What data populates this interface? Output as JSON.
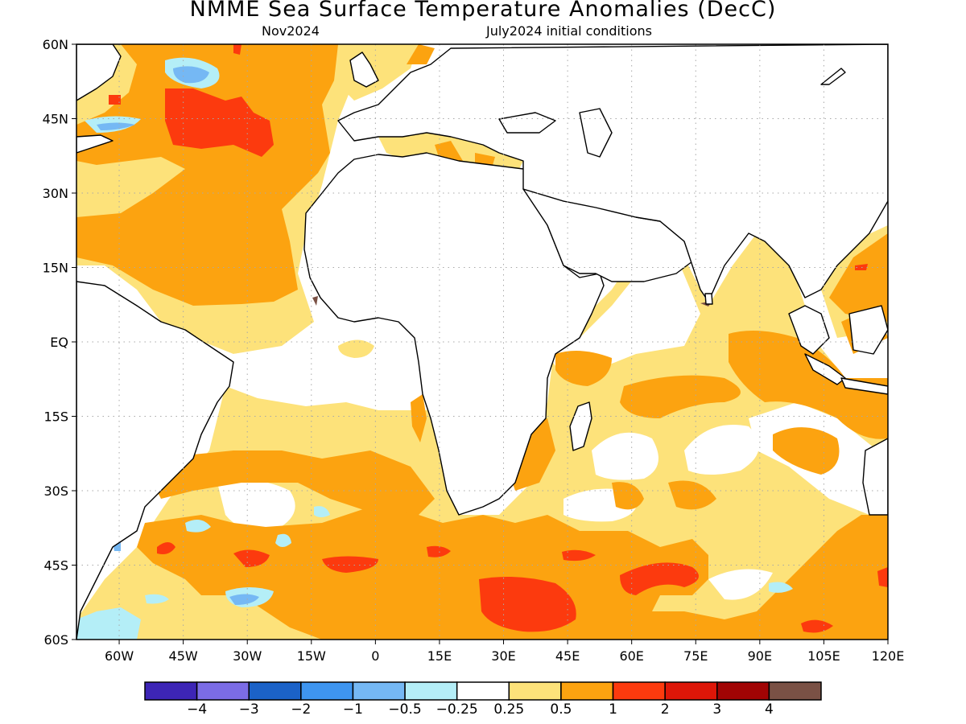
{
  "title": "NMME Sea Surface Temperature Anomalies (DecC)",
  "subtitle_left": "Nov2024",
  "subtitle_right": "July2024 initial conditions",
  "map": {
    "projection": "equirectangular",
    "lon_range": [
      -70,
      120
    ],
    "lat_range": [
      -60,
      60
    ],
    "grid": "dotted",
    "lat_ticks": [
      {
        "lat": 60,
        "label": "60N"
      },
      {
        "lat": 45,
        "label": "45N"
      },
      {
        "lat": 30,
        "label": "30N"
      },
      {
        "lat": 15,
        "label": "15N"
      },
      {
        "lat": 0,
        "label": "EQ"
      },
      {
        "lat": -15,
        "label": "15S"
      },
      {
        "lat": -30,
        "label": "30S"
      },
      {
        "lat": -45,
        "label": "45S"
      },
      {
        "lat": -60,
        "label": "60S"
      }
    ],
    "lon_ticks": [
      {
        "lon": -60,
        "label": "60W"
      },
      {
        "lon": -45,
        "label": "45W"
      },
      {
        "lon": -30,
        "label": "30W"
      },
      {
        "lon": -15,
        "label": "15W"
      },
      {
        "lon": 0,
        "label": "0"
      },
      {
        "lon": 15,
        "label": "15E"
      },
      {
        "lon": 30,
        "label": "30E"
      },
      {
        "lon": 45,
        "label": "45E"
      },
      {
        "lon": 60,
        "label": "60E"
      },
      {
        "lon": 75,
        "label": "75E"
      },
      {
        "lon": 90,
        "label": "90E"
      },
      {
        "lon": 105,
        "label": "105E"
      },
      {
        "lon": 120,
        "label": "120E"
      }
    ]
  },
  "colorbar": {
    "colors": [
      "#3d25b6",
      "#7b6ce6",
      "#1b62c8",
      "#3e95f0",
      "#75b8f4",
      "#b4eef7",
      "#ffffff",
      "#fde27a",
      "#fca310",
      "#fc3a0e",
      "#de1608",
      "#a10404",
      "#7a5145"
    ],
    "labels": [
      "−4",
      "−3",
      "−2",
      "−1",
      "−0.5",
      "−0.25",
      "0.25",
      "0.5",
      "1",
      "2",
      "3",
      "4"
    ]
  },
  "colors": {
    "land": "#ffffff",
    "coast": "#000000",
    "grid": "#a8a8a8",
    "weak_warm": "#fde27a",
    "warm": "#fca310",
    "strong_warm": "#fc3a0e",
    "weak_cool": "#b4eef7",
    "cool": "#75b8f4",
    "lake": "#7a5145"
  }
}
